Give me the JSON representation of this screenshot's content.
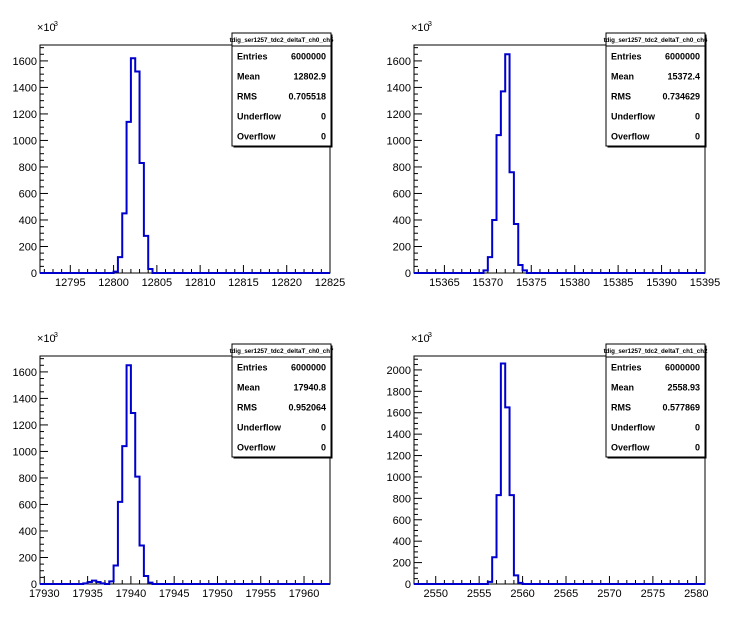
{
  "chart_data": [
    {
      "type": "bar",
      "title": "tdig_ser1257_tdc2_deltaT_ch0_ch5",
      "multiplier_label": "×10",
      "multiplier_exp": "3",
      "xlim": [
        12791.5,
        12825
      ],
      "ylim": [
        0,
        1720
      ],
      "x_ticks": [
        12795,
        12800,
        12805,
        12810,
        12815,
        12820,
        12825
      ],
      "y_ticks": [
        0,
        200,
        400,
        600,
        800,
        1000,
        1200,
        1400,
        1600
      ],
      "bin_width": 0.5,
      "bins": [
        {
          "x": 12800.0,
          "y": 10
        },
        {
          "x": 12800.5,
          "y": 120
        },
        {
          "x": 12801.0,
          "y": 450
        },
        {
          "x": 12801.5,
          "y": 1140
        },
        {
          "x": 12802.0,
          "y": 1620
        },
        {
          "x": 12802.5,
          "y": 1520
        },
        {
          "x": 12803.0,
          "y": 830
        },
        {
          "x": 12803.5,
          "y": 280
        },
        {
          "x": 12804.0,
          "y": 30
        }
      ],
      "stats": [
        {
          "label": "Entries",
          "value": "6000000"
        },
        {
          "label": "Mean",
          "value": "12802.9"
        },
        {
          "label": "RMS",
          "value": "0.705518"
        },
        {
          "label": "Underflow",
          "value": "0"
        },
        {
          "label": "Overflow",
          "value": "0"
        }
      ],
      "line_color": "#0000cc"
    },
    {
      "type": "bar",
      "title": "tdig_ser1257_tdc2_deltaT_ch0_ch6",
      "multiplier_label": "×10",
      "multiplier_exp": "3",
      "xlim": [
        15361.5,
        15395
      ],
      "ylim": [
        0,
        1720
      ],
      "x_ticks": [
        15365,
        15370,
        15375,
        15380,
        15385,
        15390,
        15395
      ],
      "y_ticks": [
        0,
        200,
        400,
        600,
        800,
        1000,
        1200,
        1400,
        1600
      ],
      "bin_width": 0.5,
      "bins": [
        {
          "x": 15369.5,
          "y": 20
        },
        {
          "x": 15370.0,
          "y": 120
        },
        {
          "x": 15370.5,
          "y": 400
        },
        {
          "x": 15371.0,
          "y": 1040
        },
        {
          "x": 15371.5,
          "y": 1370
        },
        {
          "x": 15372.0,
          "y": 1650
        },
        {
          "x": 15372.5,
          "y": 760
        },
        {
          "x": 15373.0,
          "y": 370
        },
        {
          "x": 15373.5,
          "y": 60
        },
        {
          "x": 15374.0,
          "y": 20
        }
      ],
      "stats": [
        {
          "label": "Entries",
          "value": "6000000"
        },
        {
          "label": "Mean",
          "value": "15372.4"
        },
        {
          "label": "RMS",
          "value": "0.734629"
        },
        {
          "label": "Underflow",
          "value": "0"
        },
        {
          "label": "Overflow",
          "value": "0"
        }
      ],
      "line_color": "#0000cc"
    },
    {
      "type": "bar",
      "title": "tdig_ser1257_tdc2_deltaT_ch0_ch7",
      "multiplier_label": "×10",
      "multiplier_exp": "3",
      "xlim": [
        17929.5,
        17963
      ],
      "ylim": [
        0,
        1720
      ],
      "x_ticks": [
        17930,
        17935,
        17940,
        17945,
        17950,
        17955,
        17960
      ],
      "y_ticks": [
        0,
        200,
        400,
        600,
        800,
        1000,
        1200,
        1400,
        1600
      ],
      "bin_width": 0.5,
      "bins": [
        {
          "x": 17934.5,
          "y": 5
        },
        {
          "x": 17935.0,
          "y": 15
        },
        {
          "x": 17935.5,
          "y": 25
        },
        {
          "x": 17936.0,
          "y": 15
        },
        {
          "x": 17936.5,
          "y": 5
        },
        {
          "x": 17937.5,
          "y": 20
        },
        {
          "x": 17938.0,
          "y": 140
        },
        {
          "x": 17938.5,
          "y": 620
        },
        {
          "x": 17939.0,
          "y": 1040
        },
        {
          "x": 17939.5,
          "y": 1650
        },
        {
          "x": 17940.0,
          "y": 1290
        },
        {
          "x": 17940.5,
          "y": 810
        },
        {
          "x": 17941.0,
          "y": 290
        },
        {
          "x": 17941.5,
          "y": 60
        },
        {
          "x": 17942.0,
          "y": 10
        }
      ],
      "stats": [
        {
          "label": "Entries",
          "value": "6000000"
        },
        {
          "label": "Mean",
          "value": "17940.8"
        },
        {
          "label": "RMS",
          "value": "0.952064"
        },
        {
          "label": "Underflow",
          "value": "0"
        },
        {
          "label": "Overflow",
          "value": "0"
        }
      ],
      "line_color": "#0000cc"
    },
    {
      "type": "bar",
      "title": "tdig_ser1257_tdc2_deltaT_ch1_ch2",
      "multiplier_label": "×10",
      "multiplier_exp": "3",
      "xlim": [
        2547.5,
        2581
      ],
      "ylim": [
        0,
        2130
      ],
      "x_ticks": [
        2550,
        2555,
        2560,
        2565,
        2570,
        2575,
        2580
      ],
      "y_ticks": [
        0,
        200,
        400,
        600,
        800,
        1000,
        1200,
        1400,
        1600,
        1800,
        2000
      ],
      "bin_width": 0.5,
      "bins": [
        {
          "x": 2556.0,
          "y": 20
        },
        {
          "x": 2556.5,
          "y": 250
        },
        {
          "x": 2557.0,
          "y": 830
        },
        {
          "x": 2557.5,
          "y": 2060
        },
        {
          "x": 2558.0,
          "y": 1650
        },
        {
          "x": 2558.5,
          "y": 830
        },
        {
          "x": 2559.0,
          "y": 80
        },
        {
          "x": 2559.5,
          "y": 10
        }
      ],
      "stats": [
        {
          "label": "Entries",
          "value": "6000000"
        },
        {
          "label": "Mean",
          "value": "2558.93"
        },
        {
          "label": "RMS",
          "value": "0.577869"
        },
        {
          "label": "Underflow",
          "value": "0"
        },
        {
          "label": "Overflow",
          "value": "0"
        }
      ],
      "line_color": "#0000cc"
    }
  ]
}
